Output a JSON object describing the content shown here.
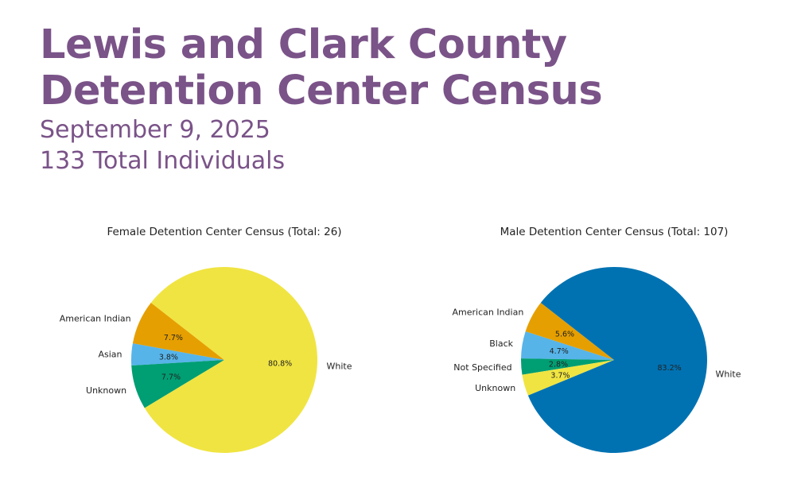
{
  "header": {
    "title_line1": "Lewis and Clark County",
    "title_line2": "Detention Center  Census",
    "date": "September 9, 2025",
    "total": "133 Total Individuals"
  },
  "chart_data": [
    {
      "type": "pie",
      "title": "Female Detention Center Census (Total: 26)",
      "start_angle_deg": 142,
      "slices": [
        {
          "label": "American Indian",
          "value": 7.7,
          "pct_label": "7.7%",
          "color": "#e69f00"
        },
        {
          "label": "Asian",
          "value": 3.8,
          "pct_label": "3.8%",
          "color": "#56b4e9"
        },
        {
          "label": "Unknown",
          "value": 7.7,
          "pct_label": "7.7%",
          "color": "#009e73"
        },
        {
          "label": "White",
          "value": 80.8,
          "pct_label": "80.8%",
          "color": "#f0e442"
        }
      ]
    },
    {
      "type": "pie",
      "title": "Male Detention Center Census (Total: 107)",
      "start_angle_deg": 142,
      "slices": [
        {
          "label": "American Indian",
          "value": 5.6,
          "pct_label": "5.6%",
          "color": "#e69f00"
        },
        {
          "label": "Black",
          "value": 4.7,
          "pct_label": "4.7%",
          "color": "#56b4e9"
        },
        {
          "label": "Not Specified",
          "value": 2.8,
          "pct_label": "2.8%",
          "color": "#009e73"
        },
        {
          "label": "Unknown",
          "value": 3.7,
          "pct_label": "3.7%",
          "color": "#f0e442"
        },
        {
          "label": "White",
          "value": 83.2,
          "pct_label": "83.2%",
          "color": "#0072b2"
        }
      ]
    }
  ]
}
